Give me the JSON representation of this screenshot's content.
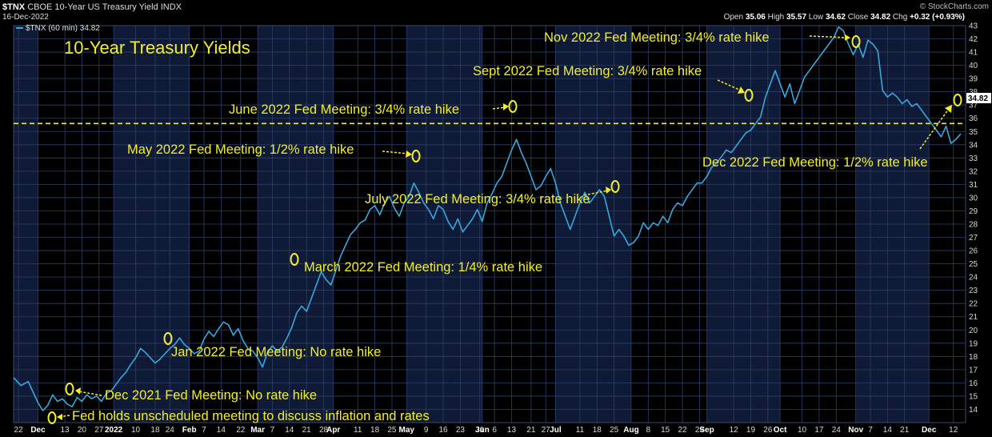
{
  "header": {
    "symbol": "$TNX",
    "description": "CBOE 10-Year US Treasury Yield",
    "exchange": "INDX",
    "date": "16-Dec-2022",
    "open_label": "Open",
    "open": "35.06",
    "high_label": "High",
    "high": "35.57",
    "low_label": "Low",
    "low": "34.62",
    "close_label": "Close",
    "close": "34.82",
    "chg_label": "Chg",
    "chg": "+0.32 (+0.93%)",
    "brand": "© StockCharts.com",
    "legend": "$TNX (60 min) 34.82",
    "last_value_tag": "34.82"
  },
  "colors": {
    "line": "#3aa6dd",
    "annotation": "#f2ee2a",
    "band": "#0e1a36",
    "grid": "#2c3f66",
    "background": "#000000"
  },
  "chart_data": {
    "type": "line",
    "title": "10-Year Treasury Yields",
    "series_name": "$TNX (60 min)",
    "ylim": [
      13,
      43
    ],
    "y_ticks": [
      14,
      15,
      16,
      17,
      18,
      19,
      20,
      21,
      22,
      23,
      24,
      25,
      26,
      27,
      28,
      29,
      30,
      31,
      32,
      33,
      34,
      35,
      36,
      37,
      38,
      39,
      40,
      41,
      42,
      43
    ],
    "x_range": [
      0,
      390
    ],
    "x_ticks": [
      {
        "label": "22",
        "day": 2,
        "bold": false
      },
      {
        "label": "Dec",
        "day": 10,
        "bold": true
      },
      {
        "label": "13",
        "day": 21,
        "bold": false
      },
      {
        "label": "20",
        "day": 28,
        "bold": false
      },
      {
        "label": "27",
        "day": 35,
        "bold": false
      },
      {
        "label": "2022",
        "day": 41,
        "bold": true
      },
      {
        "label": "10",
        "day": 50,
        "bold": false
      },
      {
        "label": "18",
        "day": 58,
        "bold": false
      },
      {
        "label": "24",
        "day": 64,
        "bold": false
      },
      {
        "label": "Feb",
        "day": 72,
        "bold": true
      },
      {
        "label": "7",
        "day": 78,
        "bold": false
      },
      {
        "label": "14",
        "day": 85,
        "bold": false
      },
      {
        "label": "22",
        "day": 93,
        "bold": false
      },
      {
        "label": "Mar",
        "day": 100,
        "bold": true
      },
      {
        "label": "7",
        "day": 106,
        "bold": false
      },
      {
        "label": "14",
        "day": 113,
        "bold": false
      },
      {
        "label": "21",
        "day": 120,
        "bold": false
      },
      {
        "label": "28",
        "day": 127,
        "bold": false
      },
      {
        "label": "Apr",
        "day": 131,
        "bold": true
      },
      {
        "label": "11",
        "day": 141,
        "bold": false
      },
      {
        "label": "18",
        "day": 148,
        "bold": false
      },
      {
        "label": "25",
        "day": 155,
        "bold": false
      },
      {
        "label": "May",
        "day": 161,
        "bold": true
      },
      {
        "label": "9",
        "day": 169,
        "bold": false
      },
      {
        "label": "16",
        "day": 176,
        "bold": false
      },
      {
        "label": "23",
        "day": 183,
        "bold": false
      },
      {
        "label": "31",
        "day": 191,
        "bold": false
      },
      {
        "label": "Jun",
        "day": 192,
        "bold": true
      },
      {
        "label": "6",
        "day": 197,
        "bold": false
      },
      {
        "label": "13",
        "day": 204,
        "bold": false
      },
      {
        "label": "21",
        "day": 212,
        "bold": false
      },
      {
        "label": "27",
        "day": 218,
        "bold": false
      },
      {
        "label": "Jul",
        "day": 222,
        "bold": true
      },
      {
        "label": "11",
        "day": 232,
        "bold": false
      },
      {
        "label": "18",
        "day": 239,
        "bold": false
      },
      {
        "label": "25",
        "day": 246,
        "bold": false
      },
      {
        "label": "Aug",
        "day": 253,
        "bold": true
      },
      {
        "label": "8",
        "day": 260,
        "bold": false
      },
      {
        "label": "15",
        "day": 267,
        "bold": false
      },
      {
        "label": "22",
        "day": 274,
        "bold": false
      },
      {
        "label": "29",
        "day": 281,
        "bold": false
      },
      {
        "label": "Sep",
        "day": 284,
        "bold": true
      },
      {
        "label": "12",
        "day": 295,
        "bold": false
      },
      {
        "label": "19",
        "day": 302,
        "bold": false
      },
      {
        "label": "26",
        "day": 309,
        "bold": false
      },
      {
        "label": "Oct",
        "day": 314,
        "bold": true
      },
      {
        "label": "10",
        "day": 323,
        "bold": false
      },
      {
        "label": "17",
        "day": 330,
        "bold": false
      },
      {
        "label": "24",
        "day": 337,
        "bold": false
      },
      {
        "label": "Nov",
        "day": 345,
        "bold": true
      },
      {
        "label": "7",
        "day": 351,
        "bold": false
      },
      {
        "label": "14",
        "day": 358,
        "bold": false
      },
      {
        "label": "21",
        "day": 365,
        "bold": false
      },
      {
        "label": "Dec",
        "day": 375,
        "bold": true
      },
      {
        "label": "12",
        "day": 385,
        "bold": false
      }
    ],
    "month_bands": [
      [
        0,
        10
      ],
      [
        41,
        72
      ],
      [
        100,
        131
      ],
      [
        161,
        192
      ],
      [
        222,
        253
      ],
      [
        284,
        314
      ],
      [
        345,
        375
      ]
    ],
    "reference_level": 35.6,
    "points": [
      [
        0,
        16.4
      ],
      [
        3,
        15.8
      ],
      [
        6,
        16.1
      ],
      [
        8,
        15.3
      ],
      [
        10,
        14.5
      ],
      [
        12,
        13.9
      ],
      [
        14,
        14.3
      ],
      [
        16,
        15.1
      ],
      [
        18,
        14.6
      ],
      [
        20,
        14.8
      ],
      [
        22,
        14.4
      ],
      [
        24,
        14.2
      ],
      [
        26,
        14.9
      ],
      [
        28,
        14.6
      ],
      [
        30,
        15.1
      ],
      [
        32,
        14.8
      ],
      [
        34,
        15.0
      ],
      [
        36,
        14.6
      ],
      [
        38,
        15.2
      ],
      [
        40,
        15.4
      ],
      [
        42,
        15.9
      ],
      [
        44,
        16.4
      ],
      [
        46,
        16.8
      ],
      [
        48,
        17.4
      ],
      [
        50,
        17.9
      ],
      [
        52,
        18.6
      ],
      [
        54,
        18.3
      ],
      [
        56,
        17.9
      ],
      [
        58,
        17.5
      ],
      [
        60,
        17.8
      ],
      [
        62,
        18.2
      ],
      [
        64,
        18.6
      ],
      [
        66,
        18.9
      ],
      [
        68,
        19.4
      ],
      [
        70,
        18.9
      ],
      [
        72,
        18.6
      ],
      [
        74,
        18.2
      ],
      [
        76,
        18.4
      ],
      [
        78,
        19.3
      ],
      [
        80,
        19.9
      ],
      [
        82,
        19.5
      ],
      [
        84,
        20.1
      ],
      [
        86,
        20.6
      ],
      [
        88,
        20.4
      ],
      [
        90,
        19.6
      ],
      [
        92,
        20.1
      ],
      [
        94,
        19.2
      ],
      [
        96,
        18.6
      ],
      [
        98,
        18.4
      ],
      [
        100,
        17.9
      ],
      [
        102,
        17.2
      ],
      [
        104,
        18.3
      ],
      [
        106,
        18.8
      ],
      [
        108,
        18.4
      ],
      [
        110,
        18.7
      ],
      [
        112,
        19.4
      ],
      [
        114,
        20.2
      ],
      [
        116,
        21.3
      ],
      [
        118,
        21.8
      ],
      [
        120,
        21.4
      ],
      [
        122,
        22.4
      ],
      [
        124,
        23.4
      ],
      [
        126,
        24.4
      ],
      [
        128,
        23.8
      ],
      [
        130,
        23.4
      ],
      [
        132,
        24.5
      ],
      [
        134,
        25.6
      ],
      [
        136,
        26.4
      ],
      [
        138,
        27.2
      ],
      [
        140,
        27.6
      ],
      [
        142,
        28.1
      ],
      [
        144,
        28.3
      ],
      [
        146,
        29.1
      ],
      [
        148,
        29.4
      ],
      [
        150,
        28.7
      ],
      [
        152,
        29.6
      ],
      [
        154,
        30.1
      ],
      [
        156,
        29.2
      ],
      [
        158,
        28.6
      ],
      [
        160,
        29.6
      ],
      [
        162,
        30.1
      ],
      [
        164,
        31.1
      ],
      [
        166,
        30.4
      ],
      [
        168,
        29.6
      ],
      [
        170,
        29.1
      ],
      [
        172,
        28.4
      ],
      [
        174,
        29.4
      ],
      [
        176,
        29.1
      ],
      [
        178,
        28.2
      ],
      [
        180,
        27.6
      ],
      [
        182,
        28.4
      ],
      [
        184,
        27.4
      ],
      [
        186,
        27.9
      ],
      [
        188,
        28.4
      ],
      [
        190,
        29.1
      ],
      [
        192,
        28.2
      ],
      [
        194,
        29.6
      ],
      [
        196,
        30.3
      ],
      [
        198,
        31.1
      ],
      [
        200,
        31.6
      ],
      [
        202,
        32.6
      ],
      [
        204,
        33.6
      ],
      [
        206,
        34.4
      ],
      [
        208,
        33.4
      ],
      [
        210,
        32.6
      ],
      [
        212,
        31.6
      ],
      [
        214,
        30.6
      ],
      [
        216,
        30.9
      ],
      [
        218,
        31.6
      ],
      [
        220,
        32.2
      ],
      [
        222,
        31.1
      ],
      [
        224,
        29.6
      ],
      [
        226,
        28.6
      ],
      [
        228,
        27.6
      ],
      [
        230,
        28.6
      ],
      [
        232,
        29.6
      ],
      [
        234,
        30.4
      ],
      [
        236,
        29.6
      ],
      [
        238,
        30.1
      ],
      [
        240,
        30.6
      ],
      [
        242,
        30.1
      ],
      [
        244,
        28.6
      ],
      [
        246,
        27.1
      ],
      [
        248,
        27.6
      ],
      [
        250,
        27.1
      ],
      [
        252,
        26.4
      ],
      [
        254,
        26.6
      ],
      [
        256,
        27.1
      ],
      [
        258,
        28.1
      ],
      [
        260,
        27.6
      ],
      [
        262,
        28.1
      ],
      [
        264,
        27.9
      ],
      [
        266,
        28.6
      ],
      [
        268,
        28.1
      ],
      [
        270,
        29.1
      ],
      [
        272,
        29.6
      ],
      [
        274,
        29.4
      ],
      [
        276,
        30.1
      ],
      [
        278,
        30.6
      ],
      [
        280,
        31.1
      ],
      [
        282,
        31.1
      ],
      [
        284,
        31.6
      ],
      [
        286,
        32.3
      ],
      [
        288,
        32.6
      ],
      [
        290,
        33.1
      ],
      [
        292,
        33.6
      ],
      [
        294,
        33.4
      ],
      [
        296,
        33.9
      ],
      [
        298,
        34.4
      ],
      [
        300,
        34.9
      ],
      [
        302,
        35.1
      ],
      [
        304,
        35.6
      ],
      [
        306,
        36.1
      ],
      [
        308,
        37.6
      ],
      [
        310,
        38.6
      ],
      [
        312,
        39.6
      ],
      [
        314,
        38.6
      ],
      [
        316,
        37.6
      ],
      [
        318,
        38.6
      ],
      [
        320,
        37.1
      ],
      [
        322,
        38.1
      ],
      [
        324,
        39.1
      ],
      [
        326,
        39.6
      ],
      [
        328,
        40.1
      ],
      [
        330,
        40.6
      ],
      [
        332,
        41.1
      ],
      [
        334,
        41.6
      ],
      [
        336,
        42.1
      ],
      [
        338,
        42.9
      ],
      [
        340,
        42.6
      ],
      [
        342,
        41.6
      ],
      [
        344,
        40.8
      ],
      [
        346,
        41.6
      ],
      [
        348,
        40.6
      ],
      [
        350,
        41.9
      ],
      [
        352,
        41.6
      ],
      [
        354,
        41.1
      ],
      [
        356,
        38.1
      ],
      [
        358,
        37.6
      ],
      [
        360,
        37.9
      ],
      [
        362,
        37.6
      ],
      [
        364,
        37.1
      ],
      [
        366,
        37.4
      ],
      [
        368,
        36.9
      ],
      [
        370,
        37.1
      ],
      [
        372,
        36.6
      ],
      [
        374,
        36.1
      ],
      [
        376,
        35.6
      ],
      [
        378,
        35.1
      ],
      [
        380,
        34.6
      ],
      [
        382,
        35.4
      ],
      [
        384,
        34.1
      ],
      [
        386,
        34.4
      ],
      [
        388,
        34.82
      ]
    ],
    "annotations": [
      {
        "text": "Fed holds unscheduled meeting to discuss inflation and rates",
        "day": 12,
        "value": 13.9
      },
      {
        "text": "Dec 2021 Fed Meeting: No rate hike",
        "day": 19,
        "value": 14.8
      },
      {
        "text": "Jan 2022 Fed Meeting: No rate hike",
        "day": 62,
        "value": 17.2
      },
      {
        "text": "March 2022 Fed Meeting: 1/4% rate hike",
        "day": 118,
        "value": 21.7
      },
      {
        "text": "May 2022 Fed Meeting: 1/2% rate hike",
        "day": 163,
        "value": 29.6
      },
      {
        "text": "June 2022 Fed Meeting: 3/4% rate hike",
        "day": 206,
        "value": 34.3
      },
      {
        "text": "July 2022 Fed Meeting: 3/4% rate hike",
        "day": 250,
        "value": 26.9
      },
      {
        "text": "Sept 2022 Fed Meeting: 3/4% rate hike",
        "day": 303,
        "value": 35.0
      },
      {
        "text": "Nov 2022 Fed Meeting: 3/4% rate hike",
        "day": 352,
        "value": 41.6
      },
      {
        "text": "Dec 2022 Fed Meeting: 1/2% rate hike",
        "day": 387,
        "value": 34.6
      }
    ]
  }
}
